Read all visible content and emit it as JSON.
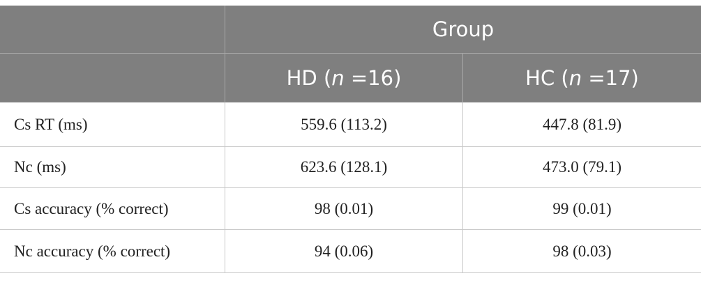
{
  "table": {
    "group_header": "Group",
    "columns": [
      [
        "HD (",
        "n",
        " =16)"
      ],
      [
        "HC (",
        "n",
        " =17)"
      ]
    ],
    "rows": [
      [
        "Cs RT (ms)",
        "559.6 (113.2)",
        "447.8 (81.9)"
      ],
      [
        "Nc (ms)",
        "623.6 (128.1)",
        "473.0 (79.1)"
      ],
      [
        "Cs accuracy (% correct)",
        "98 (0.01)",
        "99 (0.01)"
      ],
      [
        "Nc accuracy (% correct)",
        "94 (0.06)",
        "98 (0.03)"
      ]
    ]
  }
}
